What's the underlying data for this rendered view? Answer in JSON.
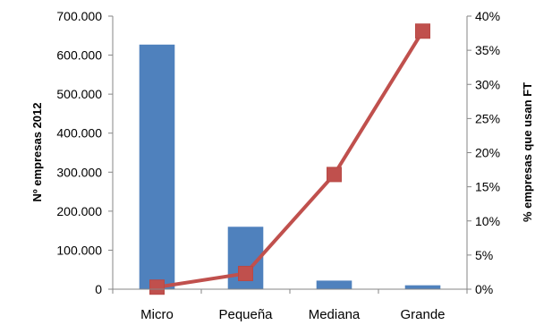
{
  "chart_data": {
    "type": "bar+line",
    "categories": [
      "Micro",
      "Pequeña",
      "Mediana",
      "Grande"
    ],
    "series": [
      {
        "type": "bar",
        "axis": "left",
        "values": [
          627000,
          160000,
          22000,
          10000
        ],
        "color": "#4F81BD"
      },
      {
        "type": "line",
        "axis": "right",
        "values": [
          0.3,
          2.3,
          16.8,
          37.8
        ],
        "color": "#C0504D"
      }
    ],
    "ylabel": "Nº empresas 2012",
    "y2label": "% empresas que usan FT",
    "ylim": [
      0,
      700000
    ],
    "y2lim": [
      0,
      40
    ],
    "yticks": [
      "0",
      "100.000",
      "200.000",
      "300.000",
      "400.000",
      "500.000",
      "600.000",
      "700.000"
    ],
    "y2ticks": [
      "0%",
      "5%",
      "10%",
      "15%",
      "20%",
      "25%",
      "30%",
      "35%",
      "40%"
    ],
    "grid": false,
    "legend": "none"
  }
}
